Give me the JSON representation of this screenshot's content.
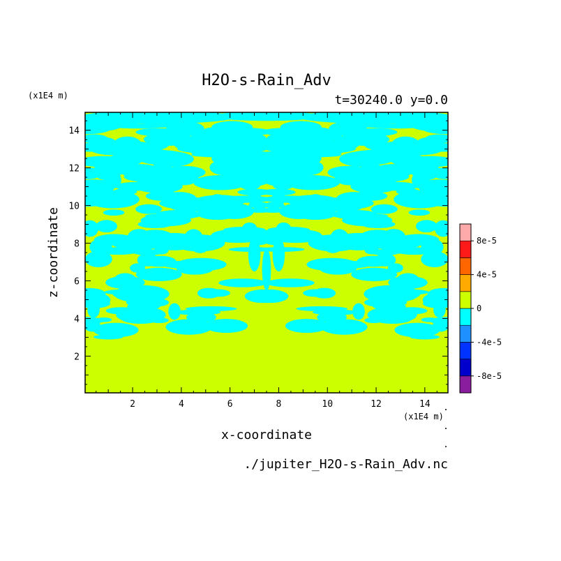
{
  "chart_data": {
    "type": "heatmap",
    "title": "H2O-s-Rain_Adv",
    "subtitle": "t=30240.0 y=0.0",
    "xlabel": "x-coordinate",
    "ylabel": "z-coordinate",
    "x_unit": "(x1E4 m)",
    "z_unit": "(x1E4 m)",
    "source_file": "./jupiter_H2O-s-Rain_Adv.nc",
    "xlim": [
      0.05,
      14.95
    ],
    "ylim": [
      0.05,
      14.95
    ],
    "x_ticks": [
      2,
      4,
      6,
      8,
      10,
      12,
      14
    ],
    "y_ticks": [
      2,
      4,
      6,
      8,
      10,
      12,
      14
    ],
    "colorbar": {
      "levels": [
        -0.0001,
        -8e-05,
        -6e-05,
        -4e-05,
        -2e-05,
        0,
        2e-05,
        4e-05,
        6e-05,
        8e-05,
        0.0001
      ],
      "colors": [
        "#8a1c9e",
        "#0000cc",
        "#0033ff",
        "#1e90ff",
        "#00ffff",
        "#ccff00",
        "#ffaa00",
        "#ff6600",
        "#ff1a1a",
        "#ffaaaa"
      ],
      "labels": [
        {
          "value": -8e-05,
          "text": "-8e-5"
        },
        {
          "value": -4e-05,
          "text": "-4e-5"
        },
        {
          "value": 0,
          "text": "0"
        },
        {
          "value": 4e-05,
          "text": "4e-5"
        },
        {
          "value": 8e-05,
          "text": "8e-5"
        }
      ]
    },
    "background_value_color": "#ccff00",
    "pattern": "mirror-symmetric about x=7.5; negative (cyan) patches between z~3 and z~15, near-zero elsewhere"
  }
}
